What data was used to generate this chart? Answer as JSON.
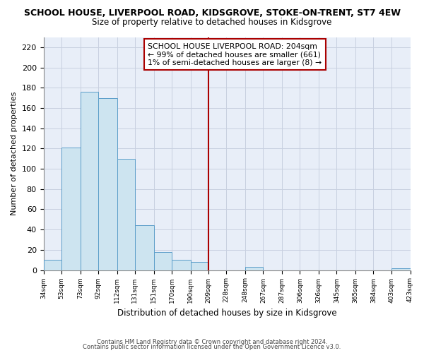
{
  "title": "SCHOOL HOUSE, LIVERPOOL ROAD, KIDSGROVE, STOKE-ON-TRENT, ST7 4EW",
  "subtitle": "Size of property relative to detached houses in Kidsgrove",
  "xlabel": "Distribution of detached houses by size in Kidsgrove",
  "ylabel": "Number of detached properties",
  "bar_edges": [
    34,
    53,
    73,
    92,
    112,
    131,
    151,
    170,
    190,
    209,
    228,
    248,
    267,
    287,
    306,
    326,
    345,
    365,
    384,
    403,
    423
  ],
  "bar_heights": [
    10,
    121,
    176,
    170,
    110,
    44,
    18,
    10,
    8,
    0,
    0,
    3,
    0,
    0,
    0,
    0,
    0,
    0,
    0,
    2
  ],
  "bar_color": "#cde4f0",
  "bar_edgecolor": "#5b9dc9",
  "vline_x": 209,
  "vline_color": "#aa0000",
  "ylim": [
    0,
    230
  ],
  "yticks": [
    0,
    20,
    40,
    60,
    80,
    100,
    120,
    140,
    160,
    180,
    200,
    220
  ],
  "annotation_lines": [
    "SCHOOL HOUSE LIVERPOOL ROAD: 204sqm",
    "← 99% of detached houses are smaller (661)",
    "1% of semi-detached houses are larger (8) →"
  ],
  "footer1": "Contains HM Land Registry data © Crown copyright and database right 2024.",
  "footer2": "Contains public sector information licensed under the Open Government Licence v3.0.",
  "tick_labels": [
    "34sqm",
    "53sqm",
    "73sqm",
    "92sqm",
    "112sqm",
    "131sqm",
    "151sqm",
    "170sqm",
    "190sqm",
    "209sqm",
    "228sqm",
    "248sqm",
    "267sqm",
    "287sqm",
    "306sqm",
    "326sqm",
    "345sqm",
    "365sqm",
    "384sqm",
    "403sqm",
    "423sqm"
  ],
  "bg_color": "#e8eef8",
  "grid_color": "#c8d0e0"
}
